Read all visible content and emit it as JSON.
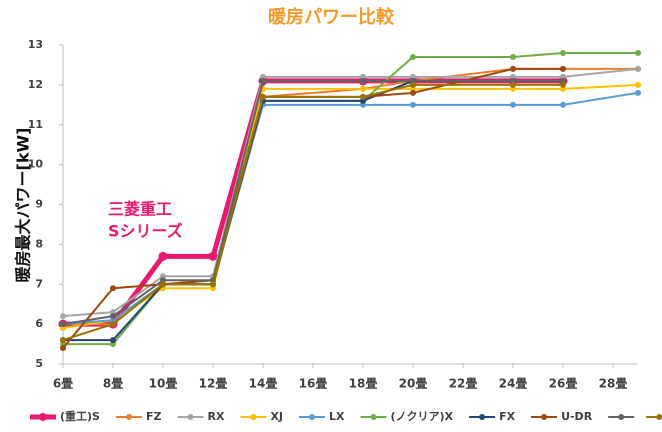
{
  "chart_data": {
    "type": "line",
    "title": "暖房パワー比較",
    "ylabel": "暖房最大パワー[kW]",
    "annotation": [
      "三菱重工",
      "Sシリーズ"
    ],
    "x": [
      6,
      8,
      10,
      12,
      14,
      18,
      20,
      24,
      26,
      29
    ],
    "xlim": [
      6,
      29
    ],
    "xticks": [
      {
        "value": 6,
        "label": "6畳"
      },
      {
        "value": 8,
        "label": "8畳"
      },
      {
        "value": 10,
        "label": "10畳"
      },
      {
        "value": 12,
        "label": "12畳"
      },
      {
        "value": 14,
        "label": "14畳"
      },
      {
        "value": 16,
        "label": "16畳"
      },
      {
        "value": 18,
        "label": "18畳"
      },
      {
        "value": 20,
        "label": "20畳"
      },
      {
        "value": 22,
        "label": "22畳"
      },
      {
        "value": 24,
        "label": "24畳"
      },
      {
        "value": 26,
        "label": "26畳"
      },
      {
        "value": 28,
        "label": "28畳"
      }
    ],
    "ylim": [
      5,
      13
    ],
    "yticks": [
      5,
      6,
      7,
      8,
      9,
      10,
      11,
      12,
      13
    ],
    "grid": false,
    "series": [
      {
        "name": "(重工)S",
        "color": "#e8196e",
        "width": 5,
        "values": [
          6.0,
          6.0,
          7.7,
          7.7,
          12.1,
          12.1,
          12.1,
          12.1,
          12.1,
          null
        ]
      },
      {
        "name": "FZ",
        "color": "#ed7d31",
        "width": 2,
        "values": [
          6.0,
          6.0,
          7.0,
          7.1,
          11.7,
          11.9,
          12.1,
          12.4,
          12.4,
          12.4
        ]
      },
      {
        "name": "RX",
        "color": "#a5a5a5",
        "width": 2,
        "values": [
          6.2,
          6.3,
          7.2,
          7.2,
          12.2,
          12.2,
          12.2,
          12.2,
          12.2,
          12.4
        ]
      },
      {
        "name": "XJ",
        "color": "#ffc000",
        "width": 2,
        "values": [
          5.9,
          6.1,
          6.9,
          6.9,
          11.9,
          11.9,
          11.9,
          11.9,
          11.9,
          12.0
        ]
      },
      {
        "name": "LX",
        "color": "#5b9bd5",
        "width": 2,
        "values": [
          6.0,
          6.1,
          7.0,
          7.0,
          11.5,
          11.5,
          11.5,
          11.5,
          11.5,
          11.8
        ]
      },
      {
        "name": "(ノクリア)X",
        "color": "#70ad47",
        "width": 2,
        "values": [
          5.5,
          5.5,
          7.0,
          7.0,
          11.6,
          11.6,
          12.7,
          12.7,
          12.8,
          12.8
        ]
      },
      {
        "name": "FX",
        "color": "#264478",
        "width": 2,
        "values": [
          5.6,
          5.6,
          7.0,
          7.0,
          11.6,
          11.6,
          12.1,
          12.1,
          12.1,
          null
        ]
      },
      {
        "name": "U-DR",
        "color": "#9e480e",
        "width": 2,
        "values": [
          5.4,
          6.9,
          7.0,
          7.1,
          11.7,
          11.7,
          11.8,
          12.4,
          12.4,
          null
        ]
      },
      {
        "name": null,
        "color": "#636363",
        "width": 2,
        "values": [
          6.0,
          6.2,
          7.1,
          7.1,
          12.1,
          12.1,
          12.1,
          12.1,
          12.1,
          null
        ]
      },
      {
        "name": null,
        "color": "#997300",
        "width": 2,
        "values": [
          5.6,
          6.0,
          7.0,
          7.0,
          11.7,
          11.7,
          12.0,
          12.0,
          12.0,
          null
        ]
      }
    ]
  }
}
